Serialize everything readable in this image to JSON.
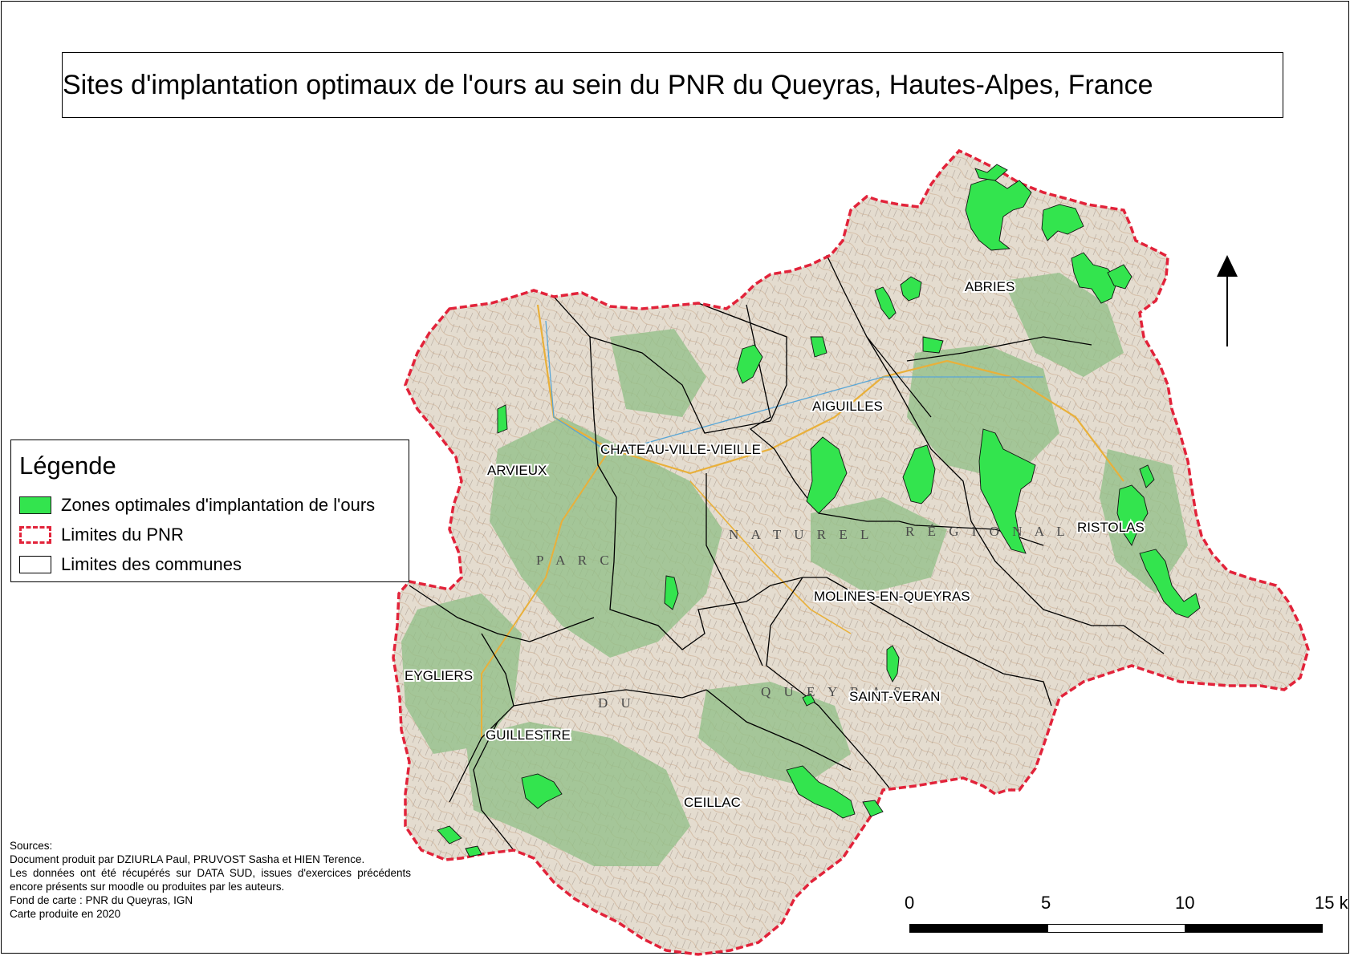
{
  "title": "Sites d'implantation optimaux de l'ours au sein du PNR du Queyras, Hautes-Alpes, France",
  "communes": [
    "ABRIES",
    "AIGUILLES",
    "CHATEAU-VILLE-VIEILLE",
    "ARVIEUX",
    "RISTOLAS",
    "MOLINES-EN-QUEYRAS",
    "SAINT-VERAN",
    "EYGLIERS",
    "GUILLESTRE",
    "CEILLAC"
  ],
  "map_words": [
    "P A R C",
    "N A T U R E L",
    "R É G I O N A L",
    "D U",
    "Q U E Y R A S"
  ],
  "north_arrow": "north-arrow-icon",
  "legend": {
    "title": "Légende",
    "items": [
      {
        "label": "Zones optimales d'implantation de l'ours",
        "color": "#33e44e"
      },
      {
        "label": "Limites du PNR",
        "color": "#e2233a"
      },
      {
        "label": "Limites des communes",
        "color": "#000000"
      }
    ]
  },
  "sources": [
    "Sources:",
    "Document produit par DZIURLA Paul, PRUVOST Sasha et HIEN Terence.",
    "Les données ont été récupérés sur DATA SUD, issues d'exercices précédents encore présents sur moodle ou produites par les auteurs.",
    "Fond de carte : PNR du Queyras, IGN",
    "Carte produite en 2020"
  ],
  "scale": {
    "labels": [
      "0",
      "5",
      "10",
      "15 k"
    ],
    "unit_values": [
      0,
      5,
      10,
      15
    ]
  },
  "colors": {
    "zones": "#33e44e",
    "pnr_boundary": "#e2233a",
    "commune_boundary": "#000000",
    "relief_base": "#e4dccf",
    "forest": "#93c089"
  }
}
